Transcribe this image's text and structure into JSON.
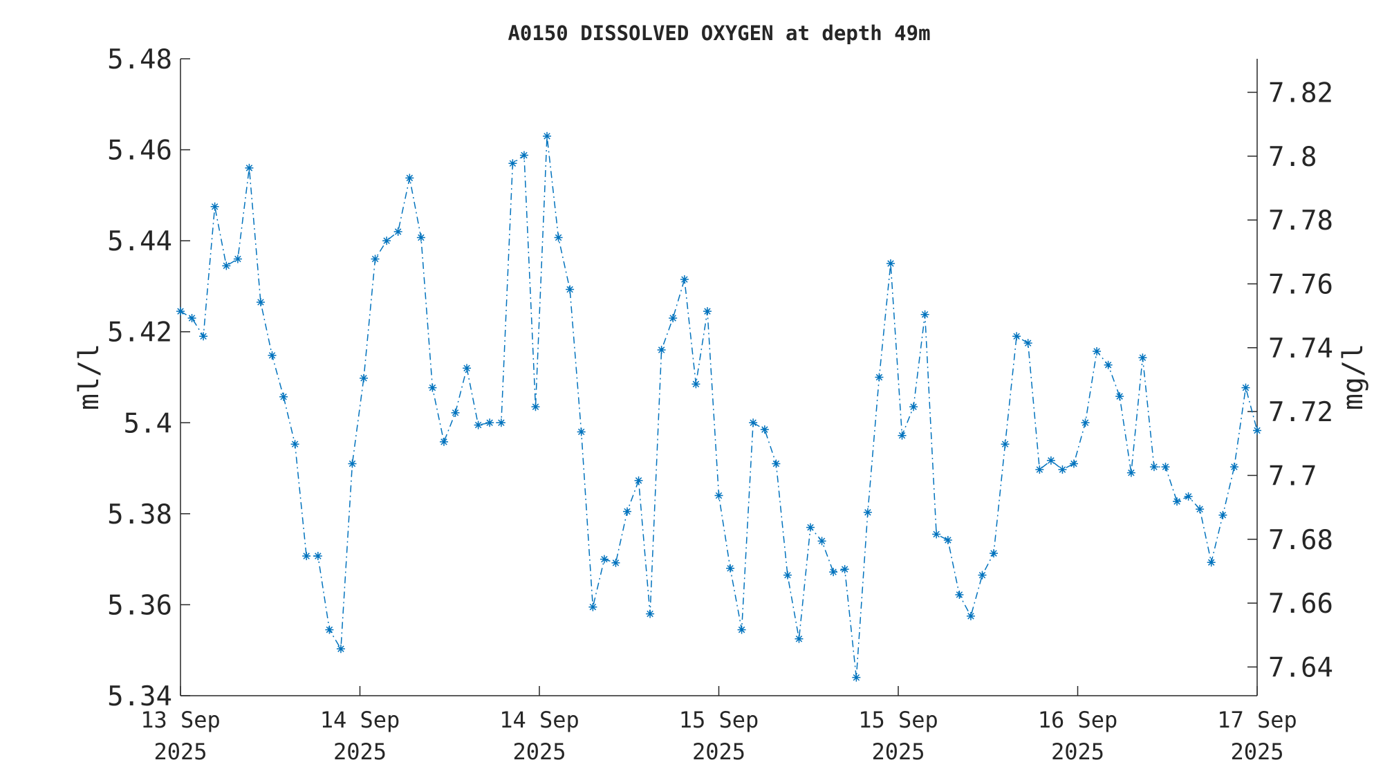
{
  "chart_data": {
    "type": "line",
    "title": "A0150 DISSOLVED OXYGEN at depth 49m",
    "ylabel": "ml/l",
    "y2label": "mg/l",
    "xlim": [
      0,
      96
    ],
    "xticks": [
      {
        "value": 0,
        "label": "13 Sep\n2025"
      },
      {
        "value": 16,
        "label": "14 Sep\n2025"
      },
      {
        "value": 32,
        "label": "14 Sep\n2025"
      },
      {
        "value": 48,
        "label": "15 Sep\n2025"
      },
      {
        "value": 64,
        "label": "15 Sep\n2025"
      },
      {
        "value": 80,
        "label": "16 Sep\n2025"
      },
      {
        "value": 96,
        "label": "17 Sep\n2025"
      }
    ],
    "ylim": [
      5.34,
      5.48
    ],
    "yticks": [
      5.34,
      5.36,
      5.38,
      5.4,
      5.42,
      5.44,
      5.46,
      5.48
    ],
    "y2lim": [
      7.631,
      7.8305
    ],
    "y2ticks": [
      7.64,
      7.66,
      7.68,
      7.7,
      7.72,
      7.74,
      7.76,
      7.78,
      7.8,
      7.82
    ],
    "x": [
      0,
      1.02,
      2.04,
      3.06,
      4.09,
      5.11,
      6.13,
      7.15,
      8.17,
      9.19,
      10.21,
      11.23,
      12.26,
      13.28,
      14.3,
      15.32,
      16.34,
      17.36,
      18.38,
      19.4,
      20.43,
      21.45,
      22.47,
      23.49,
      24.51,
      25.53,
      26.55,
      27.57,
      28.6,
      29.62,
      30.64,
      31.66,
      32.68,
      33.7,
      34.72,
      35.74,
      36.77,
      37.79,
      38.81,
      39.83,
      40.85,
      41.87,
      42.89,
      43.91,
      44.94,
      45.96,
      46.98,
      48,
      49.02,
      50.04,
      51.06,
      52.09,
      53.11,
      54.13,
      55.15,
      56.17,
      57.19,
      58.21,
      59.23,
      60.26,
      61.28,
      62.3,
      63.32,
      64.34,
      65.36,
      66.38,
      67.4,
      68.43,
      69.45,
      70.47,
      71.49,
      72.51,
      73.53,
      74.55,
      75.57,
      76.6,
      77.62,
      78.64,
      79.66,
      80.68,
      81.7,
      82.72,
      83.74,
      84.77,
      85.79,
      86.81,
      87.83,
      88.85,
      89.87,
      90.89,
      91.91,
      92.94,
      93.96,
      94.98,
      96
    ],
    "series": [
      {
        "color": "#0072bd",
        "values": [
          5.4245,
          5.423,
          5.419,
          5.4475,
          5.4345,
          5.436,
          5.456,
          5.4265,
          5.4148,
          5.4057,
          5.3953,
          5.3707,
          5.3707,
          5.3545,
          5.3503,
          5.391,
          5.4098,
          5.436,
          5.44,
          5.442,
          5.4538,
          5.4407,
          5.4077,
          5.3958,
          5.4022,
          5.412,
          5.3995,
          5.4,
          5.4,
          5.457,
          5.4588,
          5.4035,
          5.463,
          5.4407,
          5.4293,
          5.398,
          5.3595,
          5.37,
          5.3692,
          5.3805,
          5.3873,
          5.358,
          5.416,
          5.423,
          5.4315,
          5.4085,
          5.4245,
          5.384,
          5.368,
          5.3545,
          5.4,
          5.3985,
          5.391,
          5.3665,
          5.3525,
          5.377,
          5.374,
          5.3672,
          5.3678,
          5.344,
          5.3803,
          5.41,
          5.435,
          5.3972,
          5.4035,
          5.4238,
          5.3755,
          5.3742,
          5.3622,
          5.3575,
          5.3665,
          5.3713,
          5.3953,
          5.419,
          5.4175,
          5.3897,
          5.3917,
          5.3897,
          5.391,
          5.4,
          5.4157,
          5.4127,
          5.4058,
          5.389,
          5.4143,
          5.3903,
          5.3903,
          5.3827,
          5.3838,
          5.381,
          5.3693,
          5.3797,
          5.3903,
          5.4077,
          5.3983
        ]
      }
    ]
  }
}
